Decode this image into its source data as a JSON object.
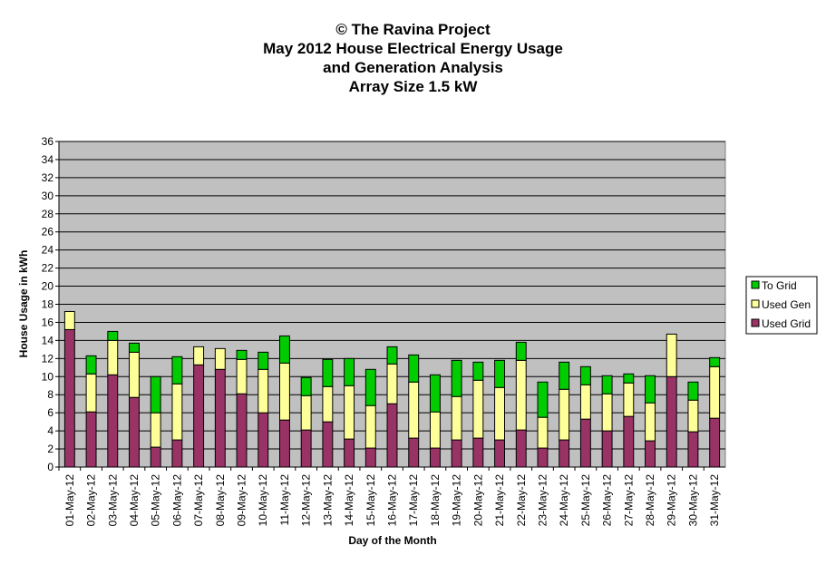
{
  "chart_data": {
    "type": "bar",
    "stacked": true,
    "title_lines": [
      "© The Ravina Project",
      "May 2012 House Electrical Energy Usage",
      "and Generation Analysis",
      "Array Size 1.5 kW"
    ],
    "xlabel": "Day of the Month",
    "ylabel": "House Usage in kWh",
    "ylim": [
      0,
      36
    ],
    "yticks": [
      0,
      2,
      4,
      6,
      8,
      10,
      12,
      14,
      16,
      18,
      20,
      22,
      24,
      26,
      28,
      30,
      32,
      34,
      36
    ],
    "grid": true,
    "legend_position": "right",
    "categories": [
      "01-May-12",
      "02-May-12",
      "03-May-12",
      "04-May-12",
      "05-May-12",
      "06-May-12",
      "07-May-12",
      "08-May-12",
      "09-May-12",
      "10-May-12",
      "11-May-12",
      "12-May-12",
      "13-May-12",
      "14-May-12",
      "15-May-12",
      "16-May-12",
      "17-May-12",
      "18-May-12",
      "19-May-12",
      "20-May-12",
      "21-May-12",
      "22-May-12",
      "23-May-12",
      "24-May-12",
      "25-May-12",
      "26-May-12",
      "27-May-12",
      "28-May-12",
      "29-May-12",
      "30-May-12",
      "31-May-12"
    ],
    "series": [
      {
        "name": "Used Grid",
        "color": "#993366",
        "values": [
          15.2,
          6.1,
          10.2,
          7.7,
          2.2,
          3.0,
          11.3,
          10.8,
          8.1,
          6.0,
          5.2,
          4.1,
          5.0,
          3.1,
          2.1,
          7.0,
          3.2,
          2.1,
          3.0,
          3.2,
          3.0,
          4.1,
          2.1,
          3.0,
          5.3,
          4.0,
          5.6,
          2.9,
          10.0,
          3.9,
          5.4
        ]
      },
      {
        "name": "Used Gen",
        "color": "#FFFF99",
        "values": [
          2.0,
          4.2,
          3.8,
          5.0,
          3.8,
          6.2,
          2.0,
          2.3,
          3.8,
          4.8,
          6.3,
          3.8,
          3.9,
          5.9,
          4.7,
          4.4,
          6.2,
          4.0,
          4.8,
          6.4,
          5.8,
          7.7,
          3.4,
          5.6,
          3.8,
          4.1,
          3.7,
          4.2,
          4.7,
          3.5,
          5.7
        ]
      },
      {
        "name": "To Grid",
        "color": "#00CC00",
        "values": [
          0.0,
          2.0,
          1.0,
          1.0,
          4.0,
          3.0,
          0.0,
          0.0,
          1.0,
          1.9,
          3.0,
          2.0,
          3.0,
          3.0,
          4.0,
          1.9,
          3.0,
          4.1,
          4.0,
          2.0,
          3.0,
          2.0,
          3.9,
          3.0,
          2.0,
          2.0,
          1.0,
          3.0,
          0.0,
          2.0,
          1.0
        ]
      }
    ],
    "legend_order": [
      "To Grid",
      "Used Gen",
      "Used Grid"
    ]
  }
}
